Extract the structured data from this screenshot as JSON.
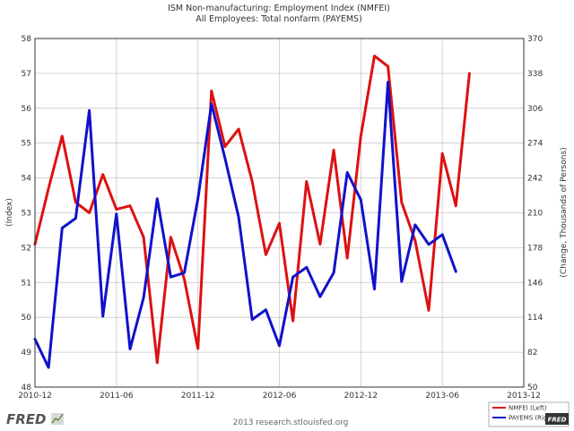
{
  "branding": {
    "logo": "FRED",
    "credit": "2013 research.stlouisfed.org",
    "legend_logo": "FRED"
  },
  "colors": {
    "nmfei": "#dd1111",
    "payems": "#1111cc",
    "grid": "#c8c8c8",
    "frame": "#333333"
  },
  "chart_data": {
    "type": "line",
    "title": [
      "ISM Non-manufacturing: Employment Index (NMFEI)",
      "All Employees: Total nonfarm (PAYEMS)"
    ],
    "xlabel": "",
    "ylabel_left": "(Index)",
    "ylabel_right": "(Change, Thousands of Persons)",
    "x_range": [
      0,
      36
    ],
    "x_ticks": [
      {
        "month_index": 0,
        "label": "2010-12"
      },
      {
        "month_index": 6,
        "label": "2011-06"
      },
      {
        "month_index": 12,
        "label": "2011-12"
      },
      {
        "month_index": 18,
        "label": "2012-06"
      },
      {
        "month_index": 24,
        "label": "2012-12"
      },
      {
        "month_index": 30,
        "label": "2013-06"
      },
      {
        "month_index": 36,
        "label": "2013-12"
      }
    ],
    "ylim_left": [
      48,
      58
    ],
    "yticks_left": [
      "48",
      "49",
      "50",
      "51",
      "52",
      "53",
      "54",
      "55",
      "56",
      "57",
      "58"
    ],
    "ylim_right": [
      50,
      370
    ],
    "yticks_right": [
      "50",
      "82",
      "114",
      "146",
      "178",
      "210",
      "242",
      "274",
      "306",
      "338",
      "370"
    ],
    "grid": true,
    "legend_position": "bottom-right",
    "series": [
      {
        "name": "NMFEI (Left)",
        "axis": "left",
        "start_month_index": 0,
        "values": [
          52.1,
          53.7,
          55.2,
          53.3,
          53.0,
          54.1,
          53.1,
          53.2,
          52.3,
          48.7,
          52.3,
          51.1,
          49.1,
          56.5,
          54.9,
          55.4,
          53.9,
          51.8,
          52.7,
          49.9,
          53.9,
          52.1,
          54.8,
          51.7,
          55.2,
          57.5,
          57.2,
          53.3,
          52.2,
          50.2,
          54.7,
          53.2,
          57.0
        ]
      },
      {
        "name": "PAYEMS (Right)",
        "axis": "right",
        "start_month_index": 0,
        "values": [
          94,
          68,
          196,
          205,
          304,
          115,
          209,
          85,
          132,
          223,
          151,
          155,
          223,
          310,
          260,
          206,
          112,
          121,
          88,
          151,
          160,
          133,
          155,
          247,
          222,
          140,
          330,
          147,
          199,
          181,
          190,
          156
        ]
      }
    ]
  }
}
